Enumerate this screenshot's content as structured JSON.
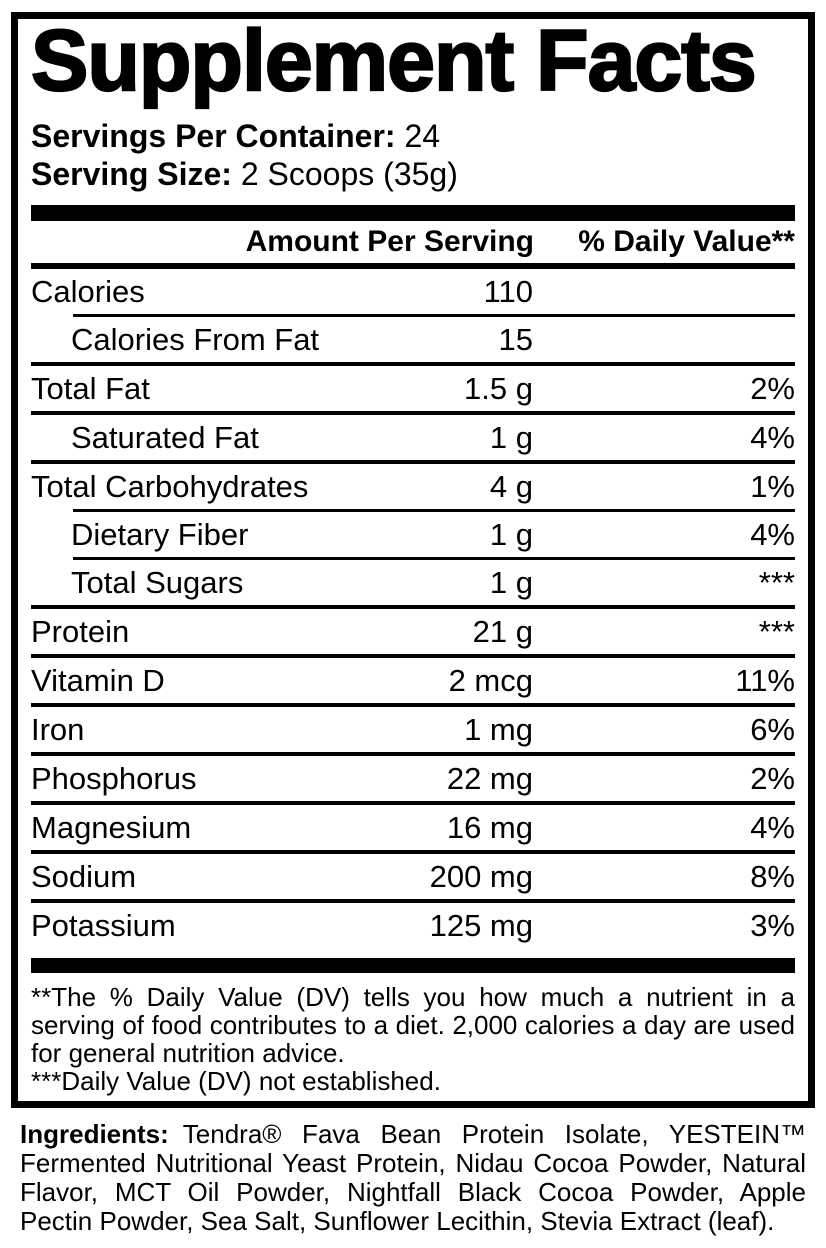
{
  "colors": {
    "text": "#000000",
    "background": "#ffffff",
    "rule": "#000000"
  },
  "panel": {
    "title": "Supplement Facts",
    "servings_label": "Servings Per Container:",
    "servings_value": "24",
    "serving_size_label": "Serving Size:",
    "serving_size_value": "2 Scoops (35g)",
    "header": {
      "amount": "Amount Per Serving",
      "daily_value": "% Daily Value**"
    },
    "rows": [
      {
        "name": "Calories",
        "amount": "110",
        "dv": ""
      },
      {
        "name": "Calories From Fat",
        "amount": "15",
        "dv": ""
      },
      {
        "name": "Total Fat",
        "amount": "1.5 g",
        "dv": "2%"
      },
      {
        "name": "Saturated Fat",
        "amount": "1 g",
        "dv": "4%"
      },
      {
        "name": "Total Carbohydrates",
        "amount": "4 g",
        "dv": "1%"
      },
      {
        "name": "Dietary Fiber",
        "amount": "1 g",
        "dv": "4%"
      },
      {
        "name": "Total Sugars",
        "amount": "1 g",
        "dv": "***"
      },
      {
        "name": "Protein",
        "amount": "21 g",
        "dv": "***"
      },
      {
        "name": "Vitamin D",
        "amount": "2 mcg",
        "dv": "11%"
      },
      {
        "name": "Iron",
        "amount": "1 mg",
        "dv": "6%"
      },
      {
        "name": "Phosphorus",
        "amount": "22 mg",
        "dv": "2%"
      },
      {
        "name": "Magnesium",
        "amount": "16 mg",
        "dv": "4%"
      },
      {
        "name": "Sodium",
        "amount": "200 mg",
        "dv": "8%"
      },
      {
        "name": "Potassium",
        "amount": "125 mg",
        "dv": "3%"
      }
    ],
    "footnote_dv": "**The % Daily Value (DV) tells you how much a nutrient in a serving of food contributes to a diet. 2,000 calories a day are used for general nutrition advice.",
    "footnote_not_established": "***Daily Value (DV) not established."
  },
  "ingredients": {
    "label": "Ingredients:",
    "text": "Tendra® Fava Bean Protein Isolate, YESTEIN™ Fermented Nutritional Yeast Protein, Nidau Cocoa Powder, Natural Flavor, MCT Oil Powder, Nightfall Black Cocoa Powder, Apple Pectin Powder, Sea Salt, Sunflower Lecithin, Stevia Extract (leaf)."
  }
}
